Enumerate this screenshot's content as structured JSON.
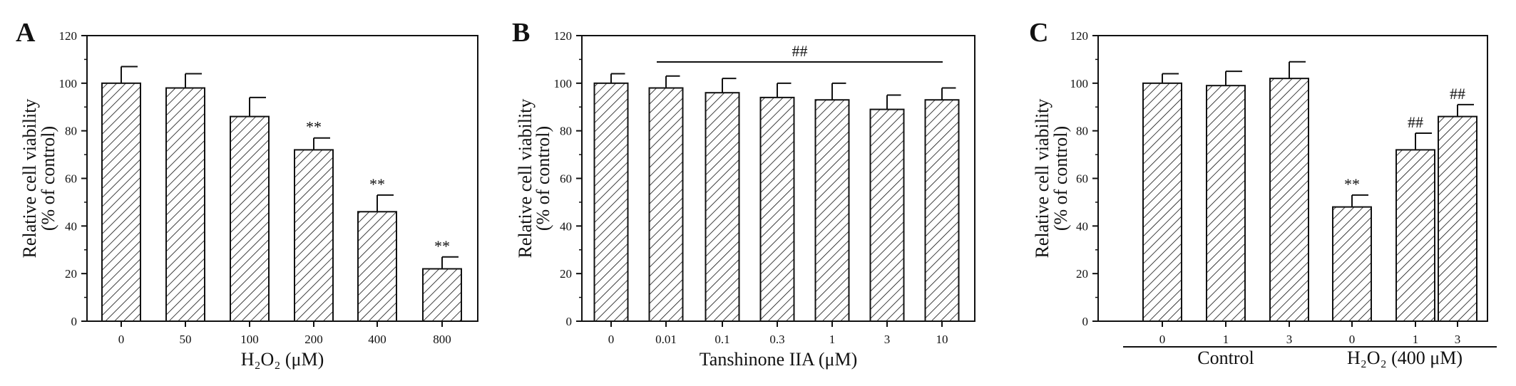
{
  "chart_data": [
    {
      "type": "bar",
      "panel_label": "A",
      "categories": [
        "0",
        "50",
        "100",
        "200",
        "400",
        "800"
      ],
      "values": [
        100,
        98,
        86,
        72,
        46,
        22
      ],
      "errors": [
        7,
        6,
        8,
        5,
        7,
        5
      ],
      "annotations": [
        "",
        "",
        "",
        "**",
        "**",
        "**"
      ],
      "xlabel": "H₂O₂ (μM)",
      "ylabel": [
        "Relative cell viability",
        "(% of control)"
      ],
      "yticks": [
        "0",
        "20",
        "40",
        "60",
        "80",
        "100",
        "120"
      ],
      "ylim": [
        0,
        120
      ],
      "grid": false,
      "bar_fill": "diagonal hatch"
    },
    {
      "type": "bar",
      "panel_label": "B",
      "categories": [
        "0",
        "0.01",
        "0.1",
        "0.3",
        "1",
        "3",
        "10"
      ],
      "values": [
        100,
        98,
        96,
        94,
        93,
        89,
        93
      ],
      "errors": [
        4,
        5,
        6,
        6,
        7,
        6,
        5
      ],
      "annotations": [
        "",
        "",
        "",
        "",
        "",
        "",
        ""
      ],
      "bracket": {
        "label": "##",
        "from_index": 1,
        "to_index": 6
      },
      "xlabel": "Tanshinone IIA (μM)",
      "ylabel": [
        "Relative cell viability",
        "(% of control)"
      ],
      "yticks": [
        "0",
        "20",
        "40",
        "60",
        "80",
        "100",
        "120"
      ],
      "ylim": [
        0,
        120
      ],
      "grid": false,
      "bar_fill": "diagonal hatch"
    },
    {
      "type": "bar",
      "panel_label": "C",
      "categories": [
        "0",
        "1",
        "3",
        "0",
        "1",
        "3"
      ],
      "values": [
        100,
        99,
        102,
        48,
        72,
        86
      ],
      "errors": [
        4,
        6,
        7,
        5,
        7,
        5
      ],
      "annotations": [
        "",
        "",
        "",
        "**",
        "##",
        "##"
      ],
      "groups": [
        {
          "label": "Control",
          "from_index": 0,
          "to_index": 2
        },
        {
          "label": "H₂O₂ (400 μM)",
          "from_index": 3,
          "to_index": 5
        }
      ],
      "xlabel": "",
      "ylabel": [
        "Relative cell viability",
        "(% of control)"
      ],
      "yticks": [
        "0",
        "20",
        "40",
        "60",
        "80",
        "100",
        "120"
      ],
      "ylim": [
        0,
        120
      ],
      "grid": false,
      "bar_fill": "diagonal hatch"
    }
  ],
  "colors": {
    "ink": "#111111",
    "bar_fill": "#ffffff"
  }
}
